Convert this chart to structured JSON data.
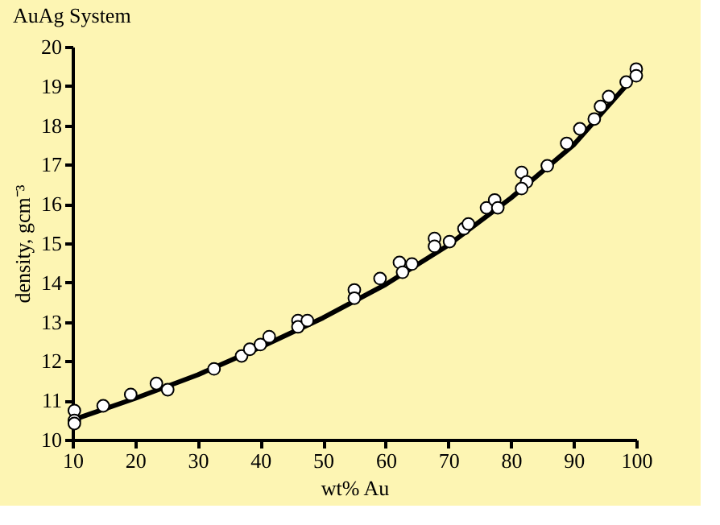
{
  "chart_data": {
    "type": "scatter",
    "title": "AuAg System",
    "xlabel": "wt% Au",
    "ylabel": "density, gcm⁻³",
    "xlim": [
      10,
      100
    ],
    "ylim": [
      10,
      20
    ],
    "xticks": [
      10,
      20,
      30,
      40,
      50,
      60,
      70,
      80,
      90,
      100
    ],
    "yticks": [
      10,
      11,
      12,
      13,
      14,
      15,
      16,
      17,
      18,
      19,
      20
    ],
    "grid": false,
    "series": [
      {
        "type": "line",
        "color": "#000000",
        "line_style": "solid",
        "x": [
          10,
          20,
          30,
          40,
          50,
          60,
          70,
          80,
          90,
          100
        ],
        "values": [
          10.5,
          11.05,
          11.65,
          12.35,
          13.1,
          13.95,
          14.95,
          16.15,
          17.5,
          19.3
        ]
      },
      {
        "color": "#ffffff",
        "marker": "circle",
        "x": [
          10.3,
          10.3,
          10.3,
          14.9,
          19.3,
          23.4,
          25.2,
          32.6,
          37,
          38.3,
          40,
          41.4,
          46,
          46,
          47.5,
          55,
          55,
          59.1,
          62.2,
          62.7,
          64.2,
          67.8,
          67.8,
          70.2,
          72.5,
          73.2,
          76.1,
          77.4,
          77.9,
          81.7,
          82.5,
          81.7,
          85.8,
          88.9,
          91,
          93.3,
          94.3,
          95.6,
          98.4,
          100,
          100
        ],
        "values": [
          10.74,
          10.49,
          10.41,
          10.86,
          11.15,
          11.43,
          11.27,
          11.8,
          12.13,
          12.3,
          12.42,
          12.62,
          13.03,
          12.87,
          13.03,
          13.81,
          13.6,
          14.1,
          14.51,
          14.26,
          14.47,
          15.12,
          14.92,
          15.04,
          15.37,
          15.49,
          15.9,
          16.1,
          15.9,
          16.8,
          16.56,
          16.39,
          16.97,
          17.54,
          17.91,
          18.16,
          18.48,
          18.73,
          19.1,
          19.43,
          19.26
        ]
      }
    ]
  }
}
